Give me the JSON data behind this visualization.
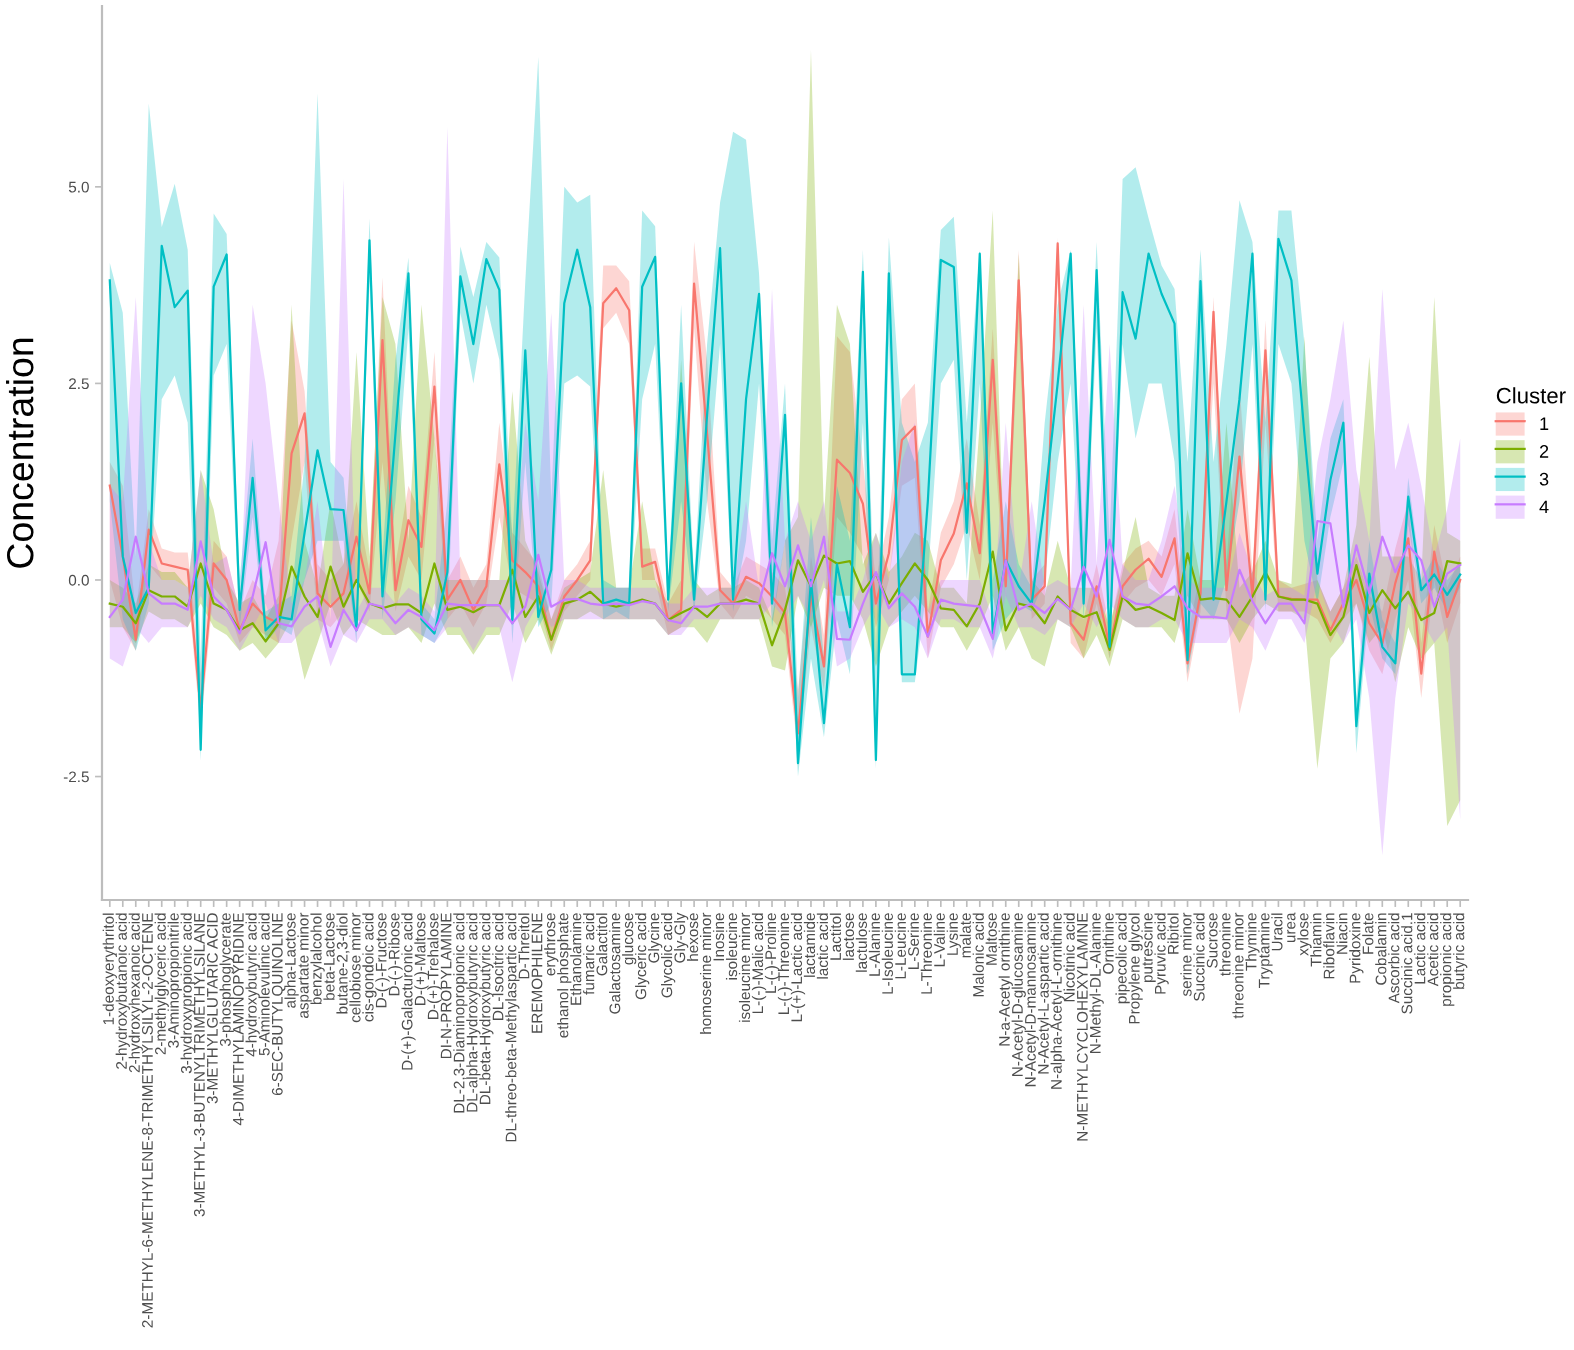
{
  "chart_data": {
    "type": "line",
    "ylabel": "Concentration",
    "legend_title": "Cluster",
    "legend": "right",
    "ylim": [
      -4.07,
      7.3
    ],
    "yticks": [
      -2.5,
      {
        "value": 0,
        "label": "0.0"
      },
      2.5,
      {
        "value": 5,
        "label": "5.0"
      }
    ],
    "categories": [
      "1-deoxyerythritol",
      "2-hydroxybutanoic acid",
      "2-hydroxyhexanoic acid",
      "2-METHYL-6-METHYLENE-8-TRIMETHYLSILYL-2-OCTENE",
      "2-methylglyceric acid",
      "3-Aminopropionitrile",
      "3-hydroxypropionic acid",
      "3-METHYL-3-BUTENYLTRIMETHYLSILANE",
      "3-METHYLGLUTARIC ACID",
      "3-phosphoglycerate",
      "4-DIMETHYLAMINOPYRIDINE",
      "4-hydroxybutyric acid",
      "5-Aminolevulinic acid",
      "6-SEC-BUTYLQUINOLINE",
      "alpha-Lactose",
      "aspartate minor",
      "benzylalcohol",
      "beta-Lactose",
      "butane-2,3-diol",
      "cellobiose minor",
      "cis-gondoic acid",
      "D-(-)-Fructose",
      "D-(-)-Ribose",
      "D-(+)-Galacturonic acid",
      "D-(+)-Maltose",
      "D-(+)-Trehalose",
      "DI-N-PROPYLAMINE",
      "DL-2,3-Diaminopropionic acid",
      "DL-alpha-Hydroxybutyric acid",
      "DL-beta-Hydroxybutyric acid",
      "DL-Isocitric acid",
      "DL-threo-beta-Methylaspartic acid",
      "D-Threitol",
      "EREMOPHILENE",
      "erythrose",
      "ethanol phosphate",
      "Ethanolamine",
      "fumaric acid",
      "Galactitol",
      "Galactosamine",
      "glucose",
      "Glyceric acid",
      "Glycine",
      "Glycolic acid",
      "Gly-Gly",
      "hexose",
      "homoserine minor",
      "Inosine",
      "isoleucine",
      "isoleucine minor",
      "L-(-)-Malic acid",
      "L-(-)-Proline",
      "L-(-)-Threonine",
      "L-(+)-Lactic acid",
      "lactamide",
      "lactic acid",
      "Lactitol",
      "lactose",
      "lactulose",
      "L-Alanine",
      "L-Isoleucine",
      "L-Leucine",
      "L-Serine",
      "L-Threonine",
      "L-Valine",
      "Lysine",
      "malate",
      "Malonic acid",
      "Maltose",
      "N-a-Acetyl ornithine",
      "N-Acetyl-D-glucosamine",
      "N-Acetyl-D-mannosamine",
      "N-Acetyl-L-aspartic acid",
      "N-alpha-Acetyl-L-ornithine",
      "Nicotinic acid",
      "N-METHYLCYCLOHEXYLAMINE",
      "N-Methyl-DL-Alanine",
      "Ornithine",
      "pipecolic acid",
      "Propylene glycol",
      "putrescine",
      "Pyruvic acid",
      "Ribitol",
      "serine minor",
      "Succinic acid",
      "Sucrose",
      "threonine",
      "threonine minor",
      "Thymine",
      "Tryptamine",
      "Uracil",
      "urea",
      "xylose",
      "Thiamin",
      "Riboflavin",
      "Niacin",
      "Pyridoxine",
      "Folate",
      "Cobalamin",
      "Ascorbic acid",
      "Succinic acid.1",
      "Lactic acid",
      "Acetic acid",
      "propionic acid",
      "butyric acid"
    ],
    "series": [
      {
        "name": "1",
        "color": "#F8766D",
        "values": [
          1.2,
          0.3,
          -0.76,
          0.64,
          0.21,
          0.17,
          0.13,
          -1.65,
          0.21,
          0.0,
          -0.64,
          -0.3,
          -0.47,
          -0.55,
          1.61,
          2.12,
          -0.17,
          -0.34,
          -0.17,
          0.55,
          -0.17,
          3.05,
          -0.13,
          0.76,
          0.42,
          2.46,
          -0.25,
          0.0,
          -0.38,
          -0.08,
          1.47,
          0.25,
          0.1,
          -0.08,
          -0.76,
          -0.21,
          0.0,
          0.25,
          3.52,
          3.71,
          3.43,
          0.17,
          0.23,
          -0.51,
          -0.38,
          3.77,
          1.86,
          -0.13,
          -0.3,
          0.04,
          -0.04,
          -0.21,
          -0.42,
          -1.95,
          -0.2,
          -1.1,
          1.53,
          1.36,
          0.97,
          -0.3,
          0.34,
          1.78,
          1.95,
          -0.72,
          0.25,
          0.59,
          1.23,
          0.34,
          2.8,
          -0.08,
          3.81,
          -0.25,
          -0.08,
          4.28,
          -0.55,
          -0.76,
          -0.08,
          -0.85,
          -0.08,
          0.13,
          0.27,
          0.04,
          0.53,
          -1.06,
          -0.17,
          3.41,
          -0.13,
          1.57,
          -0.21,
          2.92,
          -0.21,
          -0.24,
          -0.25,
          -0.25,
          -0.64,
          -0.3,
          0.0,
          -0.55,
          -0.81,
          -0.04,
          0.53,
          -1.19,
          0.36,
          -0.47,
          0.0
        ],
        "lower": [
          0.0,
          -0.6,
          -0.9,
          0.2,
          0.0,
          0.0,
          -0.1,
          -1.9,
          -0.1,
          -0.3,
          -0.8,
          -0.6,
          -0.7,
          -0.8,
          0.5,
          1.5,
          -0.5,
          -0.6,
          -0.4,
          0.0,
          -0.4,
          1.5,
          -0.4,
          0.3,
          0.0,
          1.8,
          -0.5,
          -0.3,
          -0.6,
          -0.3,
          0.8,
          -0.1,
          -0.2,
          -0.3,
          -0.9,
          -0.4,
          -0.2,
          0.0,
          3.2,
          3.4,
          3.0,
          0.0,
          0.0,
          -0.7,
          -0.6,
          3.2,
          1.0,
          -0.3,
          -0.5,
          -0.2,
          -0.3,
          -0.5,
          -0.7,
          -2.2,
          -0.6,
          -1.4,
          0.8,
          0.6,
          0.3,
          -0.6,
          0.0,
          1.2,
          1.3,
          -1.0,
          -0.1,
          0.2,
          0.7,
          0.0,
          2.0,
          -0.3,
          3.2,
          -0.5,
          -0.3,
          3.8,
          -0.8,
          -1.0,
          -0.3,
          -1.0,
          -0.3,
          -0.1,
          0.0,
          -0.2,
          0.2,
          -1.3,
          -0.4,
          2.5,
          -0.4,
          -1.7,
          -1.0,
          2.0,
          -0.4,
          -0.4,
          -0.4,
          -0.5,
          -0.8,
          -0.5,
          -0.3,
          -0.9,
          -1.2,
          -0.5,
          0.0,
          -1.5,
          0.0,
          -0.8,
          -0.3
        ],
        "upper": [
          1.5,
          1.2,
          -0.4,
          0.9,
          0.4,
          0.35,
          0.35,
          -1.2,
          0.5,
          0.3,
          -0.4,
          0.0,
          -0.2,
          0.5,
          3.3,
          2.4,
          0.2,
          0.0,
          0.2,
          1.0,
          0.1,
          3.85,
          0.2,
          1.2,
          0.8,
          2.9,
          0.0,
          0.3,
          -0.1,
          0.2,
          2.0,
          0.6,
          0.4,
          0.2,
          -0.5,
          0.0,
          0.2,
          0.5,
          4.0,
          4.0,
          3.8,
          0.4,
          0.4,
          -0.3,
          0.0,
          4.3,
          2.8,
          0.1,
          -0.1,
          0.3,
          0.2,
          0.1,
          -0.1,
          -1.4,
          0.3,
          -0.7,
          3.1,
          2.9,
          1.5,
          0.0,
          0.8,
          2.3,
          2.5,
          -0.4,
          0.6,
          1.0,
          1.8,
          0.7,
          3.2,
          0.2,
          4.2,
          0.0,
          0.2,
          4.35,
          -0.3,
          -0.5,
          0.2,
          -0.6,
          0.2,
          0.4,
          0.5,
          0.3,
          0.9,
          -0.7,
          0.1,
          3.6,
          0.2,
          2.5,
          0.1,
          3.3,
          0.0,
          -0.1,
          -0.05,
          0.0,
          -0.4,
          -0.1,
          0.3,
          -0.2,
          -0.4,
          0.4,
          1.0,
          -0.8,
          0.7,
          -0.1,
          0.3
        ]
      },
      {
        "name": "2",
        "color": "#7CAE00",
        "values": [
          -0.3,
          -0.34,
          -0.55,
          -0.13,
          -0.21,
          -0.21,
          -0.34,
          0.21,
          -0.3,
          -0.38,
          -0.64,
          -0.55,
          -0.78,
          -0.55,
          0.17,
          -0.21,
          -0.47,
          0.17,
          -0.34,
          0.0,
          -0.3,
          -0.36,
          -0.31,
          -0.31,
          -0.42,
          0.21,
          -0.38,
          -0.34,
          -0.41,
          -0.32,
          -0.32,
          0.13,
          -0.47,
          -0.21,
          -0.76,
          -0.3,
          -0.25,
          -0.15,
          -0.3,
          -0.34,
          -0.3,
          -0.25,
          -0.3,
          -0.51,
          -0.42,
          -0.34,
          -0.47,
          -0.3,
          -0.3,
          -0.25,
          -0.3,
          -0.83,
          -0.38,
          0.25,
          -0.08,
          0.31,
          0.21,
          0.24,
          -0.15,
          0.08,
          -0.3,
          -0.04,
          0.21,
          0.0,
          -0.36,
          -0.38,
          -0.59,
          -0.3,
          0.36,
          -0.64,
          -0.3,
          -0.34,
          -0.55,
          -0.21,
          -0.38,
          -0.47,
          -0.41,
          -0.89,
          -0.21,
          -0.38,
          -0.34,
          -0.42,
          -0.51,
          0.34,
          -0.25,
          -0.23,
          -0.25,
          -0.47,
          -0.21,
          0.1,
          -0.21,
          -0.25,
          -0.25,
          -0.3,
          -0.7,
          -0.47,
          0.19,
          -0.42,
          -0.13,
          -0.36,
          -0.15,
          -0.51,
          -0.42,
          0.24,
          0.21
        ],
        "lower": [
          -0.6,
          -0.6,
          -0.8,
          -0.4,
          -0.5,
          -0.5,
          -0.6,
          -0.3,
          -0.6,
          -0.7,
          -0.9,
          -0.8,
          -1.0,
          -0.8,
          -0.5,
          -1.27,
          -0.8,
          -0.3,
          -0.7,
          -0.5,
          -0.6,
          -0.7,
          -0.7,
          -0.6,
          -0.8,
          -0.3,
          -0.7,
          -0.7,
          -0.95,
          -0.7,
          -0.7,
          -0.3,
          -0.8,
          -0.5,
          -0.95,
          -0.5,
          -0.5,
          -0.4,
          -0.5,
          -0.5,
          -0.5,
          -0.5,
          -0.5,
          -0.7,
          -0.6,
          -0.6,
          -0.8,
          -0.5,
          -0.5,
          -0.5,
          -0.5,
          -1.1,
          -1.15,
          -0.2,
          -0.6,
          -0.1,
          -0.2,
          -0.2,
          -0.5,
          -1.1,
          -0.6,
          -0.4,
          -0.2,
          -0.4,
          -0.6,
          -0.6,
          -0.9,
          -0.6,
          -0.2,
          -0.9,
          -0.6,
          -1.0,
          -1.1,
          -0.5,
          -0.6,
          -1.0,
          -0.7,
          -1.1,
          -0.5,
          -0.6,
          -0.6,
          -0.6,
          -0.8,
          -0.2,
          -0.5,
          -0.5,
          -0.5,
          -0.8,
          -0.5,
          -0.3,
          -0.4,
          -0.4,
          -0.5,
          -2.4,
          -1.0,
          -0.8,
          -0.3,
          -0.8,
          -0.6,
          -1.3,
          -0.6,
          -1.0,
          -0.8,
          -3.13,
          -2.8
        ],
        "upper": [
          0.0,
          -0.1,
          -0.3,
          0.2,
          0.1,
          0.1,
          -0.1,
          1.4,
          0.9,
          0.0,
          -0.3,
          -0.2,
          -0.5,
          -0.2,
          3.5,
          0.5,
          -0.1,
          1.0,
          0.2,
          2.9,
          0.3,
          3.6,
          3.0,
          0.5,
          3.5,
          1.8,
          0.0,
          0.0,
          0.0,
          0.0,
          0.0,
          2.4,
          0.5,
          0.1,
          -0.5,
          -0.1,
          0.0,
          0.1,
          1.4,
          -0.1,
          -0.1,
          1.0,
          0.0,
          -0.3,
          2.8,
          0.0,
          -0.2,
          -0.1,
          -0.1,
          0.0,
          -0.1,
          -0.5,
          0.5,
          0.8,
          6.74,
          0.8,
          3.5,
          3.0,
          0.2,
          0.6,
          0.1,
          0.3,
          0.6,
          0.5,
          -0.1,
          -0.1,
          -0.3,
          2.0,
          4.7,
          -0.3,
          4.15,
          0.0,
          -0.2,
          0.5,
          -0.1,
          -0.1,
          -0.1,
          -0.6,
          0.1,
          0.8,
          -0.1,
          -0.2,
          -0.2,
          0.9,
          0.0,
          0.0,
          2.0,
          -0.1,
          0.1,
          0.5,
          0.0,
          -0.05,
          3.1,
          0.0,
          -0.4,
          -0.1,
          0.7,
          2.84,
          0.3,
          0.3,
          0.3,
          0.0,
          3.6,
          0.6,
          0.5
        ]
      },
      {
        "name": "3",
        "color": "#00BFC4",
        "values": [
          3.81,
          0.3,
          -0.42,
          -0.1,
          4.25,
          3.47,
          3.68,
          -2.16,
          3.73,
          4.14,
          -0.38,
          1.3,
          -0.64,
          -0.47,
          -0.5,
          0.6,
          1.65,
          0.9,
          0.89,
          -0.64,
          4.32,
          -0.21,
          1.86,
          3.9,
          -0.5,
          -0.68,
          0.1,
          3.86,
          3.0,
          4.08,
          3.69,
          -0.55,
          2.92,
          -0.47,
          0.13,
          3.52,
          4.2,
          3.47,
          -0.3,
          -0.25,
          -0.3,
          3.73,
          4.11,
          -0.25,
          2.5,
          -0.25,
          2.1,
          4.22,
          -0.25,
          2.3,
          3.64,
          -0.3,
          2.1,
          -2.33,
          0.0,
          -1.82,
          0.2,
          -0.6,
          3.92,
          -2.29,
          3.9,
          -1.2,
          -1.2,
          1.0,
          4.07,
          3.98,
          0.6,
          4.15,
          -0.68,
          0.25,
          -0.08,
          -0.3,
          1.0,
          2.5,
          4.15,
          -0.3,
          3.94,
          -0.85,
          3.66,
          3.07,
          4.15,
          3.64,
          3.26,
          -1.02,
          3.8,
          -0.25,
          1.0,
          2.3,
          4.15,
          -0.25,
          4.34,
          3.81,
          1.86,
          0.08,
          1.27,
          2.0,
          -1.86,
          0.08,
          -0.85,
          -1.06,
          1.06,
          -0.13,
          0.07,
          -0.19,
          0.07
        ],
        "lower": [
          1.0,
          -0.5,
          -0.9,
          -0.3,
          2.3,
          2.6,
          2.0,
          -2.3,
          2.6,
          3.0,
          -0.6,
          0.8,
          -0.8,
          -0.6,
          -0.7,
          0.0,
          0.5,
          0.5,
          0.5,
          -0.8,
          3.8,
          -0.5,
          1.0,
          3.2,
          -0.7,
          -0.8,
          -0.5,
          3.4,
          2.5,
          3.5,
          2.8,
          -0.8,
          1.5,
          -0.6,
          -0.3,
          2.5,
          2.6,
          2.46,
          -0.5,
          -0.4,
          -0.5,
          2.3,
          3.0,
          -0.4,
          1.0,
          -0.4,
          1.0,
          3.0,
          -0.4,
          0.5,
          2.5,
          -0.6,
          0.5,
          -2.5,
          -1.0,
          -2.0,
          -0.5,
          -1.2,
          2.0,
          -2.4,
          3.0,
          -1.3,
          -1.3,
          0.0,
          2.5,
          2.8,
          0.0,
          2.5,
          -0.9,
          -0.5,
          -0.3,
          -0.4,
          0.0,
          1.5,
          2.5,
          -0.5,
          3.2,
          -1.0,
          3.0,
          1.8,
          2.5,
          2.5,
          1.5,
          -1.2,
          -0.3,
          -0.5,
          0.0,
          1.0,
          3.0,
          -0.4,
          3.0,
          2.5,
          0.5,
          -0.3,
          0.8,
          1.5,
          -2.2,
          -0.3,
          -1.0,
          -1.2,
          0.7,
          -0.3,
          -0.1,
          -0.4,
          -0.1
        ],
        "upper": [
          4.03,
          3.4,
          0.3,
          6.06,
          4.49,
          5.04,
          4.2,
          -1.0,
          4.66,
          4.4,
          0.0,
          1.8,
          -0.4,
          -0.3,
          -0.2,
          1.5,
          6.19,
          1.5,
          1.3,
          -0.5,
          4.6,
          0.3,
          2.8,
          4.1,
          -0.3,
          -0.5,
          1.0,
          4.24,
          3.6,
          4.3,
          4.1,
          0.5,
          3.8,
          6.65,
          1.0,
          5.0,
          4.8,
          4.9,
          0.0,
          -0.1,
          -0.1,
          4.7,
          4.5,
          -0.1,
          3.5,
          0.0,
          3.0,
          4.8,
          5.7,
          5.6,
          3.9,
          0.5,
          2.5,
          -1.5,
          0.8,
          -1.0,
          1.2,
          0.5,
          4.2,
          -1.0,
          4.36,
          2.0,
          1.5,
          2.0,
          4.45,
          4.62,
          2.0,
          4.2,
          0.0,
          1.0,
          0.2,
          -0.1,
          2.0,
          3.5,
          4.2,
          0.5,
          4.3,
          0.5,
          5.1,
          5.25,
          4.6,
          4.0,
          3.7,
          1.5,
          4.2,
          1.5,
          3.0,
          4.83,
          4.3,
          2.0,
          4.7,
          4.7,
          3.0,
          0.5,
          1.8,
          2.3,
          -1.5,
          0.5,
          -0.5,
          -0.8,
          1.3,
          0.0,
          0.3,
          0.0,
          0.2
        ]
      },
      {
        "name": "4",
        "color": "#C77CFF",
        "values": [
          -0.47,
          -0.25,
          0.55,
          -0.17,
          -0.3,
          -0.3,
          -0.38,
          0.49,
          -0.21,
          -0.38,
          -0.68,
          -0.21,
          0.48,
          -0.55,
          -0.59,
          -0.34,
          -0.21,
          -0.85,
          -0.38,
          -0.64,
          -0.3,
          -0.34,
          -0.55,
          -0.38,
          -0.47,
          -0.64,
          -0.3,
          -0.32,
          -0.32,
          -0.32,
          -0.32,
          -0.55,
          -0.34,
          0.32,
          -0.34,
          -0.25,
          -0.24,
          -0.3,
          -0.32,
          -0.3,
          -0.32,
          -0.27,
          -0.3,
          -0.51,
          -0.55,
          -0.34,
          -0.34,
          -0.3,
          -0.3,
          -0.3,
          -0.3,
          0.34,
          -0.08,
          0.44,
          -0.08,
          0.55,
          -0.75,
          -0.76,
          -0.3,
          0.1,
          -0.36,
          -0.17,
          -0.34,
          -0.72,
          -0.25,
          -0.3,
          -0.32,
          -0.34,
          -0.75,
          0.25,
          -0.38,
          -0.3,
          -0.42,
          -0.24,
          -0.38,
          0.17,
          -0.21,
          0.51,
          -0.21,
          -0.3,
          -0.32,
          -0.21,
          -0.08,
          -0.36,
          -0.47,
          -0.47,
          -0.49,
          0.13,
          -0.27,
          -0.55,
          -0.3,
          -0.3,
          -0.55,
          0.75,
          0.72,
          -0.34,
          0.44,
          -0.17,
          0.55,
          0.1,
          0.44,
          0.25,
          -0.34,
          0.08,
          0.19
        ],
        "lower": [
          -1.0,
          -1.1,
          -0.6,
          -0.8,
          -0.6,
          -0.6,
          -0.6,
          -0.2,
          -0.5,
          -0.6,
          -0.9,
          -0.6,
          -0.3,
          -0.8,
          -0.8,
          -0.6,
          -0.5,
          -1.1,
          -0.7,
          -0.8,
          -0.5,
          -0.5,
          -0.7,
          -0.6,
          -0.7,
          -0.8,
          -0.6,
          -0.6,
          -0.9,
          -0.6,
          -0.6,
          -1.3,
          -0.6,
          -0.3,
          -0.6,
          -0.5,
          -0.5,
          -0.5,
          -0.5,
          -0.5,
          -0.5,
          -0.5,
          -0.5,
          -0.7,
          -0.7,
          -0.5,
          -0.5,
          -0.5,
          -0.5,
          -0.5,
          -0.5,
          -0.3,
          -0.5,
          -0.2,
          -0.5,
          0.0,
          -1.1,
          -1.0,
          -0.6,
          -0.3,
          -0.6,
          -0.5,
          -0.6,
          -1.0,
          -0.5,
          -0.5,
          -0.6,
          -0.6,
          -1.0,
          -0.2,
          -0.6,
          -0.6,
          -0.7,
          -0.5,
          -0.6,
          -0.3,
          -0.6,
          -0.3,
          -0.5,
          -0.6,
          -0.6,
          -0.5,
          -0.5,
          -0.8,
          -0.8,
          -0.8,
          -0.8,
          -0.5,
          -0.6,
          -0.9,
          -0.5,
          -0.5,
          -0.8,
          0.0,
          -0.5,
          -0.8,
          -0.5,
          -1.5,
          -3.5,
          -1.5,
          -0.3,
          -0.5,
          -0.8,
          -0.6,
          -3.05
        ],
        "upper": [
          1.2,
          1.0,
          3.6,
          0.5,
          0.0,
          0.0,
          -0.1,
          1.4,
          0.2,
          0.3,
          -0.4,
          3.5,
          2.5,
          1.0,
          -0.3,
          0.0,
          1.0,
          -0.5,
          5.1,
          -0.4,
          -0.1,
          -0.1,
          -0.3,
          -0.1,
          -0.2,
          -0.4,
          5.76,
          0.0,
          0.0,
          0.0,
          0.0,
          0.0,
          2.0,
          1.0,
          3.4,
          0.0,
          0.0,
          -0.1,
          -0.1,
          -0.1,
          -0.1,
          -0.1,
          -0.1,
          -0.3,
          -0.3,
          -0.1,
          -0.1,
          -0.1,
          -0.1,
          1.0,
          -0.1,
          3.7,
          0.5,
          1.0,
          0.5,
          1.0,
          -0.4,
          -0.4,
          0.0,
          0.6,
          0.0,
          1.5,
          2.0,
          -0.4,
          0.0,
          0.0,
          0.0,
          0.0,
          -0.5,
          2.0,
          -0.1,
          1.0,
          -0.1,
          0.0,
          -0.1,
          3.5,
          0.2,
          3.0,
          0.2,
          0.0,
          0.0,
          0.5,
          1.2,
          0.0,
          -0.1,
          -0.1,
          -0.1,
          0.6,
          0.1,
          -0.2,
          -0.1,
          -0.1,
          -0.2,
          1.5,
          2.3,
          3.3,
          1.4,
          0.5,
          3.7,
          1.4,
          2.0,
          1.2,
          0.3,
          0.9,
          1.8
        ]
      }
    ]
  }
}
